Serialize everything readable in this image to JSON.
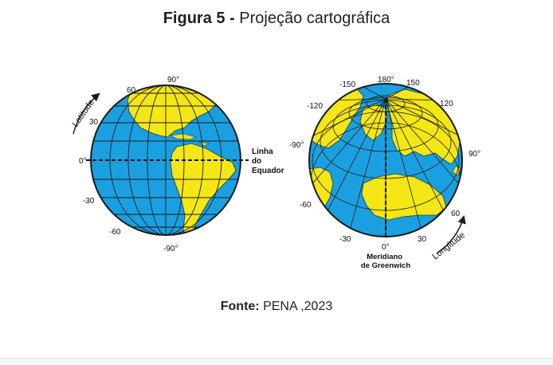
{
  "title": {
    "prefix": "Figura 5 -",
    "text": "Projeção cartográfica"
  },
  "left_globe": {
    "axis_label": "Latitude",
    "equator_label_lines": [
      "Linha",
      "do",
      "Equador"
    ],
    "ticks": {
      "top": "90°",
      "t60": "60",
      "t30": "30",
      "zero": "0°",
      "m30": "-30",
      "m60": "-60",
      "bottom": "-90°"
    }
  },
  "right_globe": {
    "axis_label": "Longitude",
    "meridian_label_lines": [
      "Meridiano",
      "de Greenwich"
    ],
    "ticks": {
      "m150": "-150",
      "t180": "180°",
      "t150": "150",
      "m120": "-120",
      "t120": "120",
      "m90": "-90°",
      "t90": "90°",
      "m60": "-60",
      "t60": "60",
      "m30": "-30",
      "zero": "0°",
      "t30": "30"
    }
  },
  "source": {
    "label": "Fonte:",
    "text": "PENA ,2023"
  },
  "colors": {
    "ocean": "#1aa0e0",
    "land": "#f5e615",
    "grid": "#1b1b1b"
  }
}
